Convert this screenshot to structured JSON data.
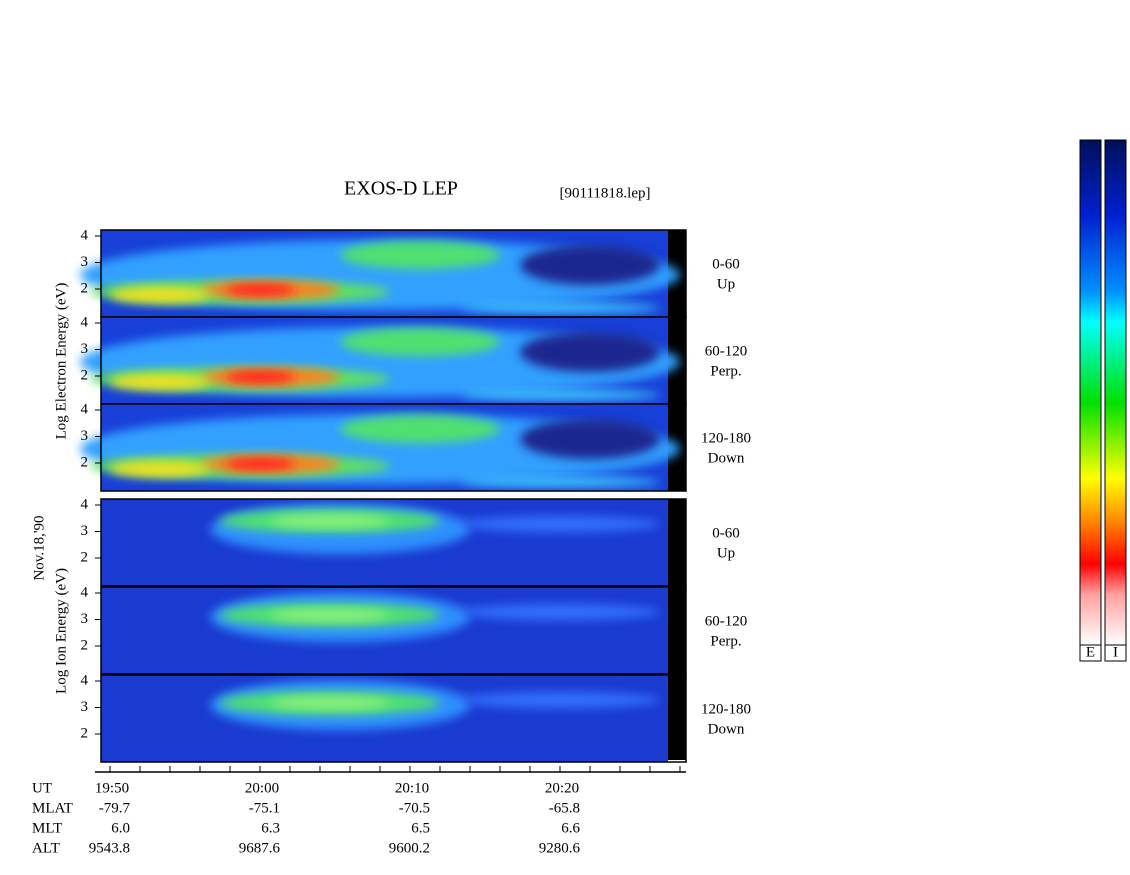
{
  "header": {
    "title": "EXOS-D LEP",
    "file": "[90111818.lep]"
  },
  "date": "Nov.18,'90",
  "electron": {
    "axis_label": "Log Electron Energy (eV)",
    "panels": [
      {
        "ticks": [
          "4",
          "3",
          "2"
        ],
        "angle": "0-60",
        "direction": "Up"
      },
      {
        "ticks": [
          "4",
          "3",
          "2"
        ],
        "angle": "60-120",
        "direction": "Perp."
      },
      {
        "ticks": [
          "4",
          "3",
          "2"
        ],
        "angle": "120-180",
        "direction": "Down"
      }
    ]
  },
  "ion": {
    "axis_label": "Log Ion Energy (eV)",
    "panels": [
      {
        "ticks": [
          "4",
          "3",
          "2"
        ],
        "angle": "0-60",
        "direction": "Up"
      },
      {
        "ticks": [
          "4",
          "3",
          "2"
        ],
        "angle": "60-120",
        "direction": "Perp."
      },
      {
        "ticks": [
          "4",
          "3",
          "2"
        ],
        "angle": "120-180",
        "direction": "Down"
      }
    ]
  },
  "ephemeris": {
    "rows": [
      [
        "UT",
        "19:50",
        "20:00",
        "20:10",
        "20:20"
      ],
      [
        "MLAT",
        "-79.7",
        "-75.1",
        "-70.5",
        "-65.8"
      ],
      [
        "MLT",
        "6.0",
        "6.3",
        "6.5",
        "6.6"
      ],
      [
        "ALT",
        "9543.8",
        "9687.6",
        "9600.2",
        "9280.6"
      ]
    ]
  },
  "colorbar": {
    "labels": [
      "E",
      "I"
    ]
  }
}
